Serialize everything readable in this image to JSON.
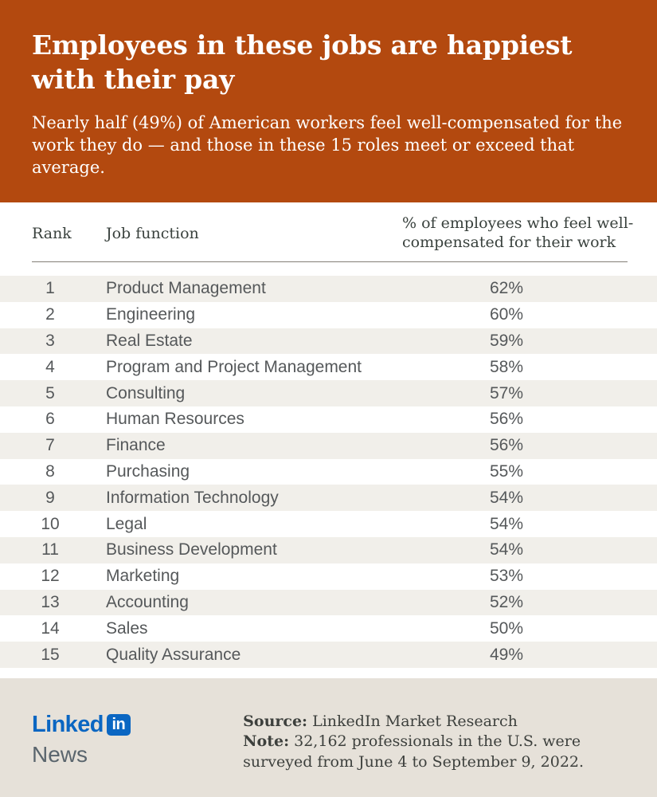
{
  "header": {
    "title": "Employees in these jobs are happiest with their pay",
    "subtitle": "Nearly half (49%) of American workers feel well-compensated for the work they do — and those in these 15 roles meet or exceed that average.",
    "bg_color": "#B3490F"
  },
  "table": {
    "columns": {
      "rank": "Rank",
      "job": "Job function",
      "pct": "% of employees who feel well-compensated for their work"
    },
    "rows": [
      {
        "rank": "1",
        "job": "Product Management",
        "pct": "62%"
      },
      {
        "rank": "2",
        "job": "Engineering",
        "pct": "60%"
      },
      {
        "rank": "3",
        "job": "Real Estate",
        "pct": "59%"
      },
      {
        "rank": "4",
        "job": "Program and Project Management",
        "pct": "58%"
      },
      {
        "rank": "5",
        "job": "Consulting",
        "pct": "57%"
      },
      {
        "rank": "6",
        "job": "Human Resources",
        "pct": "56%"
      },
      {
        "rank": "7",
        "job": "Finance",
        "pct": "56%"
      },
      {
        "rank": "8",
        "job": "Purchasing",
        "pct": "55%"
      },
      {
        "rank": "9",
        "job": "Information Technology",
        "pct": "54%"
      },
      {
        "rank": "10",
        "job": "Legal",
        "pct": "54%"
      },
      {
        "rank": "11",
        "job": "Business Development",
        "pct": "54%"
      },
      {
        "rank": "12",
        "job": "Marketing",
        "pct": "53%"
      },
      {
        "rank": "13",
        "job": "Accounting",
        "pct": "52%"
      },
      {
        "rank": "14",
        "job": "Sales",
        "pct": "50%"
      },
      {
        "rank": "15",
        "job": "Quality Assurance",
        "pct": "49%"
      }
    ]
  },
  "footer": {
    "logo": {
      "linked": "Linked",
      "in": "in",
      "news": "News"
    },
    "source_label": "Source:",
    "source_text": " LinkedIn Market Research",
    "note_label": "Note:",
    "note_text": " 32,162 professionals in the U.S. were surveyed from June 4 to September 9, 2022."
  },
  "chart_data": {
    "type": "table",
    "title": "Employees in these jobs are happiest with their pay",
    "subtitle": "Nearly half (49%) of American workers feel well-compensated for the work they do — and those in these 15 roles meet or exceed that average.",
    "columns": [
      "Rank",
      "Job function",
      "% of employees who feel well-compensated for their work"
    ],
    "categories": [
      "Product Management",
      "Engineering",
      "Real Estate",
      "Program and Project Management",
      "Consulting",
      "Human Resources",
      "Finance",
      "Purchasing",
      "Information Technology",
      "Legal",
      "Business Development",
      "Marketing",
      "Accounting",
      "Sales",
      "Quality Assurance"
    ],
    "values": [
      62,
      60,
      59,
      58,
      57,
      56,
      56,
      55,
      54,
      54,
      54,
      53,
      52,
      50,
      49
    ],
    "national_average_pct": 49,
    "source": "LinkedIn Market Research",
    "note": "32,162 professionals in the U.S. were surveyed from June 4 to September 9, 2022."
  }
}
